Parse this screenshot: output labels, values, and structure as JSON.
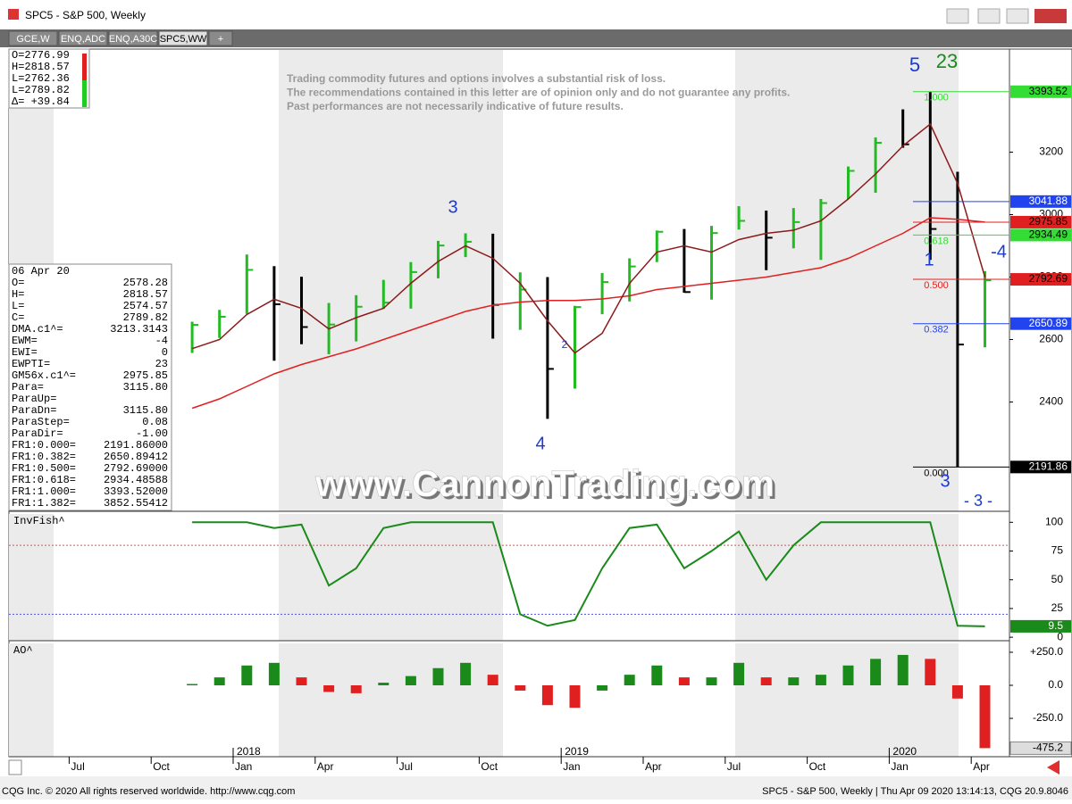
{
  "window": {
    "title": "SPC5 - S&P 500, Weekly",
    "tabs": [
      "GCE,W",
      "ENQ,ADC",
      "ENQ,A30C",
      "SPC5,WW",
      "+"
    ],
    "footer_left": "CQG Inc. © 2020 All rights reserved worldwide. http://www.cqg.com",
    "footer_right": "SPC5 - S&P 500, Weekly | Thu Apr 09 2020 13:14:13, CQG 20.9.8046"
  },
  "quote_box": [
    "O=2776.99",
    "H=2818.57",
    "L=2762.36",
    "L=2789.82",
    "Δ= +39.84"
  ],
  "info_panel": {
    "date": "06 Apr 20",
    "rows": [
      [
        "O=",
        "2578.28"
      ],
      [
        "H=",
        "2818.57"
      ],
      [
        "L=",
        "2574.57"
      ],
      [
        "C=",
        "2789.82"
      ],
      [
        "DMA.c1^=",
        "3213.3143"
      ],
      [
        "EWM=",
        "-4"
      ],
      [
        "EWI=",
        "0"
      ],
      [
        "EWPTI=",
        "23"
      ],
      [
        "GM56x.c1^=",
        "2975.85"
      ],
      [
        "Para=",
        "3115.80"
      ],
      [
        "ParaUp="
      ],
      [
        "ParaDn=",
        "3115.80"
      ],
      [
        "ParaStep=",
        "0.08"
      ],
      [
        "ParaDir=",
        "-1.00"
      ],
      [
        "FR1:0.000=",
        "2191.86000"
      ],
      [
        "FR1:0.382=",
        "2650.89412"
      ],
      [
        "FR1:0.500=",
        "2792.69000"
      ],
      [
        "FR1:0.618=",
        "2934.48588"
      ],
      [
        "FR1:1.000=",
        "3393.52000"
      ],
      [
        "FR1:1.382=",
        "3852.55412"
      ]
    ]
  },
  "disclaimer": [
    "Trading commodity futures and options involves a substantial risk of loss.",
    "The recommendations contained in this letter are of opinion only and do not guarantee any profits.",
    "Past performances are not necessarily indicative of future results."
  ],
  "watermark": "www.CannonTrading.com",
  "annotations": [
    "5",
    "23",
    "3",
    "4",
    "2",
    "1",
    "-4",
    "3",
    "- 3 -"
  ],
  "chart_data": [
    {
      "type": "ohlc",
      "title": "SPC5 - S&P 500, Weekly",
      "x": [
        "2017-11",
        "2017-12",
        "2018-01",
        "2018-02",
        "2018-03",
        "2018-04",
        "2018-05",
        "2018-06",
        "2018-07",
        "2018-08",
        "2018-09",
        "2018-10",
        "2018-11",
        "2018-12",
        "2019-01",
        "2019-02",
        "2019-03",
        "2019-04",
        "2019-05",
        "2019-06",
        "2019-07",
        "2019-08",
        "2019-09",
        "2019-10",
        "2019-11",
        "2019-12",
        "2020-01",
        "2020-02",
        "2020-03",
        "2020-04"
      ],
      "high": [
        2657,
        2695,
        2872,
        2835,
        2801,
        2717,
        2742,
        2791,
        2848,
        2916,
        2940,
        2939,
        2815,
        2800,
        2708,
        2813,
        2860,
        2949,
        2954,
        2964,
        3027,
        3013,
        3021,
        3050,
        3154,
        3247,
        3337,
        3393,
        3137,
        2819
      ],
      "low": [
        2557,
        2605,
        2682,
        2532,
        2585,
        2553,
        2594,
        2698,
        2699,
        2796,
        2864,
        2603,
        2631,
        2346,
        2443,
        2681,
        2722,
        2848,
        2750,
        2728,
        2952,
        2822,
        2892,
        2855,
        3050,
        3070,
        3214,
        2855,
        2192,
        2575
      ],
      "close": [
        2647,
        2673,
        2823,
        2713,
        2640,
        2648,
        2705,
        2718,
        2816,
        2901,
        2913,
        2711,
        2760,
        2506,
        2704,
        2784,
        2834,
        2945,
        2752,
        2941,
        2980,
        2926,
        2976,
        3037,
        3140,
        3230,
        3225,
        2954,
        2584,
        2790
      ],
      "up_color": "#22bb22",
      "down_color": "#000000",
      "overlays": [
        {
          "color": "#e02020",
          "values": [
            2380,
            2410,
            2450,
            2490,
            2520,
            2545,
            2570,
            2600,
            2630,
            2660,
            2690,
            2710,
            2720,
            2725,
            2725,
            2730,
            2740,
            2760,
            2770,
            2780,
            2790,
            2800,
            2815,
            2830,
            2860,
            2900,
            2940,
            2990,
            2985,
            2976
          ]
        },
        {
          "color": "#8b1a1a",
          "values": [
            2571,
            2600,
            2680,
            2729,
            2700,
            2634,
            2670,
            2700,
            2780,
            2850,
            2900,
            2860,
            2780,
            2660,
            2557,
            2620,
            2780,
            2880,
            2900,
            2880,
            2920,
            2940,
            2950,
            2980,
            3050,
            3130,
            3220,
            3290,
            3100,
            2800
          ]
        }
      ],
      "levels": [
        {
          "value": 3393.52,
          "color": "#33dd33",
          "ratio": "1.000"
        },
        {
          "value": 3041.88,
          "color": "#2244ee"
        },
        {
          "value": 2975.85,
          "color": "#e02020"
        },
        {
          "value": 2934.49,
          "color": "#33dd33",
          "ratio": "0.618"
        },
        {
          "value": 2792.69,
          "color": "#e02020",
          "ratio": "0.500"
        },
        {
          "value": 2650.89,
          "color": "#2244ee",
          "ratio": "0.382"
        },
        {
          "value": 2191.86,
          "color": "#000000",
          "ratio": "0.000"
        }
      ],
      "ylim": [
        2050,
        3530
      ],
      "yticks": [
        2400,
        2600,
        2800,
        3000,
        3200
      ]
    },
    {
      "type": "line",
      "title": "InvFish^",
      "x": [
        "2017-11",
        "2017-12",
        "2018-01",
        "2018-02",
        "2018-03",
        "2018-04",
        "2018-05",
        "2018-06",
        "2018-07",
        "2018-08",
        "2018-09",
        "2018-10",
        "2018-11",
        "2018-12",
        "2019-01",
        "2019-02",
        "2019-03",
        "2019-04",
        "2019-05",
        "2019-06",
        "2019-07",
        "2019-08",
        "2019-09",
        "2019-10",
        "2019-11",
        "2019-12",
        "2020-01",
        "2020-02",
        "2020-03",
        "2020-04"
      ],
      "series": [
        {
          "color": "#1a8a1a",
          "values": [
            100,
            100,
            100,
            95,
            98,
            45,
            60,
            95,
            100,
            100,
            100,
            100,
            20,
            10,
            15,
            60,
            95,
            98,
            60,
            75,
            92,
            50,
            80,
            100,
            100,
            100,
            100,
            100,
            10,
            9.5
          ]
        }
      ],
      "hlines": [
        {
          "value": 80,
          "color": "#e05050"
        },
        {
          "value": 20,
          "color": "#5050e0"
        }
      ],
      "ylim": [
        -3,
        108
      ],
      "yticks": [
        0,
        25,
        50,
        75,
        100
      ]
    },
    {
      "type": "histogram-bars",
      "title": "AO^",
      "x": [
        "2017-11",
        "2017-12",
        "2018-01",
        "2018-02",
        "2018-03",
        "2018-04",
        "2018-05",
        "2018-06",
        "2018-07",
        "2018-08",
        "2018-09",
        "2018-10",
        "2018-11",
        "2018-12",
        "2019-01",
        "2019-02",
        "2019-03",
        "2019-04",
        "2019-05",
        "2019-06",
        "2019-07",
        "2019-08",
        "2019-09",
        "2019-10",
        "2019-11",
        "2019-12",
        "2020-01",
        "2020-02",
        "2020-03",
        "2020-04"
      ],
      "values": [
        10,
        60,
        150,
        170,
        60,
        -50,
        -60,
        20,
        70,
        130,
        170,
        80,
        -40,
        -150,
        -170,
        -40,
        80,
        150,
        60,
        60,
        170,
        60,
        60,
        80,
        150,
        200,
        230,
        200,
        -100,
        -475.2
      ],
      "up_color": "#1a8a1a",
      "down_color": "#e02020",
      "ylim": [
        -540,
        324
      ],
      "yticks": [
        {
          "value": -250,
          "label": "-250.0"
        },
        {
          "value": 0,
          "label": "0.0"
        },
        {
          "value": 250,
          "label": "+250.0"
        }
      ],
      "xticks": [
        {
          "value": "2017-07",
          "label": "Jul"
        },
        {
          "value": "2017-10",
          "label": "Oct"
        },
        {
          "value": "2018-01",
          "label": "Jan"
        },
        {
          "value": "2018-04",
          "label": "Apr"
        },
        {
          "value": "2018-07",
          "label": "Jul"
        },
        {
          "value": "2018-10",
          "label": "Oct"
        },
        {
          "value": "2019-01",
          "label": "Jan"
        },
        {
          "value": "2019-04",
          "label": "Apr"
        },
        {
          "value": "2019-07",
          "label": "Jul"
        },
        {
          "value": "2019-10",
          "label": "Oct"
        },
        {
          "value": "2020-01",
          "label": "Jan"
        },
        {
          "value": "2020-04",
          "label": "Apr"
        }
      ],
      "year_labels": [
        {
          "value": "2018-01",
          "label": "2018"
        },
        {
          "value": "2019-01",
          "label": "2019"
        },
        {
          "value": "2020-01",
          "label": "2020"
        }
      ]
    }
  ]
}
